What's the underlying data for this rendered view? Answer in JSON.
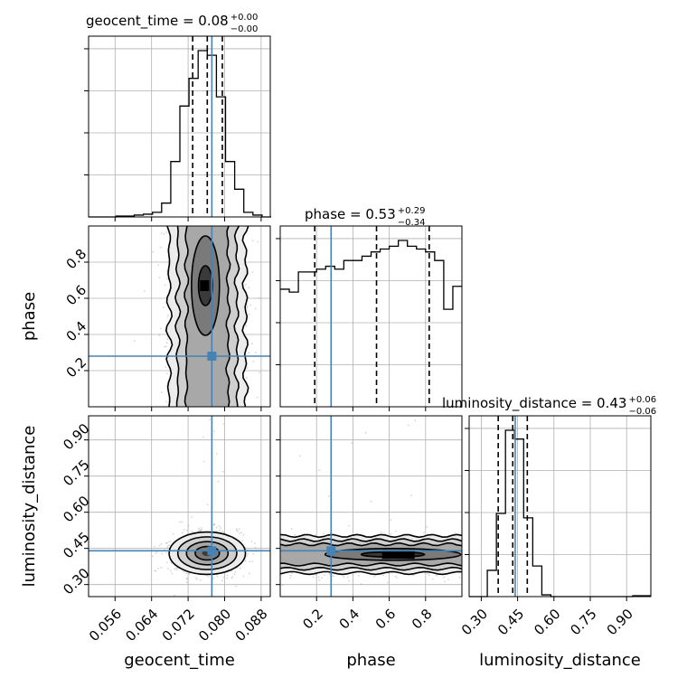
{
  "chart_data": {
    "type": "corner",
    "parameters": [
      "geocent_time",
      "phase",
      "luminosity_distance"
    ],
    "truths": {
      "geocent_time": 0.0772,
      "phase": 0.28,
      "luminosity_distance": 0.44
    },
    "truth_color": "#4682b4",
    "ranges": {
      "geocent_time": [
        0.0502,
        0.09
      ],
      "phase": [
        0.0,
        1.0
      ],
      "luminosity_distance": [
        0.25,
        1.0
      ]
    },
    "titles": [
      {
        "param": "geocent_time",
        "text": "geocent_time = 0.08",
        "sup": "+0.00",
        "sub": "−0.00"
      },
      {
        "param": "phase",
        "text": "phase = 0.53",
        "sup": "+0.29",
        "sub": "−0.34"
      },
      {
        "param": "luminosity_distance",
        "text": "luminosity_distance = 0.43",
        "sup": "+0.06",
        "sub": "−0.06"
      }
    ],
    "ticks": {
      "geocent_time": [
        "0.056",
        "0.064",
        "0.072",
        "0.080",
        "0.088"
      ],
      "phase": [
        "0.2",
        "0.4",
        "0.6",
        "0.8"
      ],
      "luminosity_distance": [
        "0.30",
        "0.45",
        "0.60",
        "0.75",
        "0.90"
      ]
    },
    "histograms": {
      "geocent_time": {
        "quantiles": [
          0.073,
          0.0762,
          0.0795
        ],
        "bin_edges": [
          0.0502,
          0.0522,
          0.0542,
          0.0562,
          0.0582,
          0.0602,
          0.0622,
          0.0642,
          0.0662,
          0.0682,
          0.0702,
          0.0722,
          0.0742,
          0.0762,
          0.0782,
          0.0802,
          0.0822,
          0.0842,
          0.0862,
          0.0882,
          0.0902
        ],
        "counts": [
          0,
          0,
          0,
          1,
          1,
          2,
          3,
          5,
          15,
          60,
          120,
          150,
          180,
          175,
          130,
          60,
          30,
          5,
          2,
          0
        ]
      },
      "phase": {
        "quantiles": [
          0.19,
          0.53,
          0.82
        ],
        "bin_edges": [
          0,
          0.05,
          0.1,
          0.15,
          0.2,
          0.25,
          0.3,
          0.35,
          0.4,
          0.45,
          0.5,
          0.55,
          0.6,
          0.65,
          0.7,
          0.75,
          0.8,
          0.85,
          0.9,
          0.95,
          1.0
        ],
        "counts": [
          82,
          80,
          94,
          94,
          96,
          98,
          96,
          102,
          102,
          105,
          108,
          110,
          112,
          116,
          112,
          110,
          108,
          102,
          68,
          84
        ]
      },
      "luminosity_distance": {
        "quantiles": [
          0.37,
          0.43,
          0.49
        ],
        "bin_edges": [
          0.25,
          0.2875,
          0.325,
          0.3625,
          0.4,
          0.4375,
          0.475,
          0.5125,
          0.55,
          0.5875,
          0.625,
          0.6625,
          0.7,
          0.7375,
          0.775,
          0.8125,
          0.85,
          0.8875,
          0.925,
          0.9625,
          1.0
        ],
        "counts": [
          0,
          0,
          30,
          95,
          190,
          180,
          90,
          35,
          2,
          0,
          0,
          0,
          0,
          0,
          0,
          0,
          0,
          0,
          1,
          1
        ]
      }
    },
    "density_peaks": {
      "phase_vs_geocent_time": [
        0.0762,
        0.67
      ],
      "luminosity_distance_vs_geocent_time": [
        0.0762,
        0.43
      ],
      "luminosity_distance_vs_phase": [
        0.65,
        0.42
      ]
    },
    "x_labels": [
      "geocent_time",
      "phase",
      "luminosity_distance"
    ],
    "y_labels": [
      "phase",
      "luminosity_distance"
    ],
    "grid": true
  }
}
